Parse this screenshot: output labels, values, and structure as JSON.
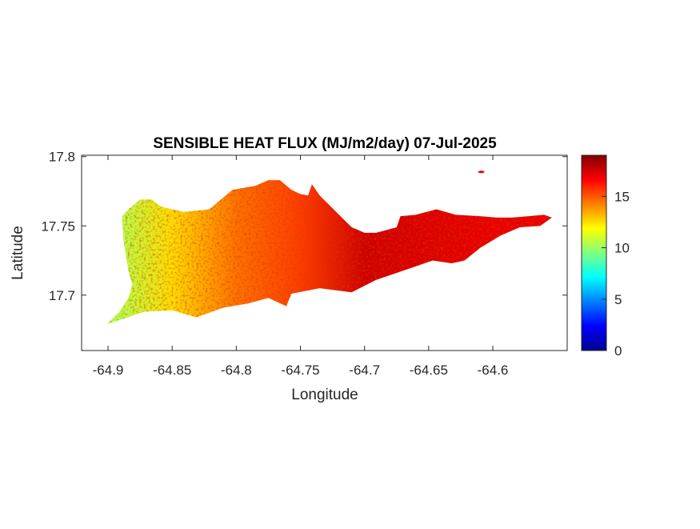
{
  "chart_data": {
    "type": "heatmap",
    "title": "SENSIBLE HEAT FLUX (MJ/m2/day) 07-Jul-2025",
    "xlabel": "Longitude",
    "ylabel": "Latitude",
    "xlim": [
      -64.9206,
      -64.542
    ],
    "ylim": [
      17.66,
      17.801
    ],
    "xticks": [
      -64.9,
      -64.85,
      -64.8,
      -64.75,
      -64.7,
      -64.65,
      -64.6
    ],
    "xtick_labels": [
      "-64.9",
      "-64.85",
      "-64.8",
      "-64.75",
      "-64.7",
      "-64.65",
      "-64.6"
    ],
    "yticks": [
      17.7,
      17.75,
      17.8
    ],
    "ytick_labels": [
      "17.7",
      "17.75",
      "17.8"
    ],
    "colorbar": {
      "colormap": "jet",
      "clim": [
        0,
        19
      ],
      "ticks": [
        0,
        5,
        10,
        15
      ],
      "tick_labels": [
        "0",
        "5",
        "10",
        "15"
      ]
    },
    "value_gradient_by_longitude": [
      {
        "lon": -64.89,
        "value": 10.5
      },
      {
        "lon": -64.85,
        "value": 12.5
      },
      {
        "lon": -64.8,
        "value": 14.5
      },
      {
        "lon": -64.75,
        "value": 15.5
      },
      {
        "lon": -64.7,
        "value": 17.5
      },
      {
        "lon": -64.6,
        "value": 17.0
      }
    ],
    "island_outline": [
      [
        -64.901,
        17.679
      ],
      [
        -64.891,
        17.688
      ],
      [
        -64.884,
        17.698
      ],
      [
        -64.881,
        17.708
      ],
      [
        -64.884,
        17.717
      ],
      [
        -64.888,
        17.74
      ],
      [
        -64.889,
        17.757
      ],
      [
        -64.884,
        17.762
      ],
      [
        -64.875,
        17.769
      ],
      [
        -64.866,
        17.769
      ],
      [
        -64.859,
        17.764
      ],
      [
        -64.841,
        17.76
      ],
      [
        -64.821,
        17.762
      ],
      [
        -64.803,
        17.776
      ],
      [
        -64.785,
        17.779
      ],
      [
        -64.775,
        17.783
      ],
      [
        -64.766,
        17.783
      ],
      [
        -64.757,
        17.776
      ],
      [
        -64.75,
        17.773
      ],
      [
        -64.744,
        17.772
      ],
      [
        -64.741,
        17.78
      ],
      [
        -64.735,
        17.772
      ],
      [
        -64.722,
        17.76
      ],
      [
        -64.71,
        17.749
      ],
      [
        -64.7,
        17.745
      ],
      [
        -64.691,
        17.745
      ],
      [
        -64.675,
        17.749
      ],
      [
        -64.672,
        17.757
      ],
      [
        -64.66,
        17.758
      ],
      [
        -64.644,
        17.762
      ],
      [
        -64.629,
        17.758
      ],
      [
        -64.61,
        17.757
      ],
      [
        -64.597,
        17.756
      ],
      [
        -64.585,
        17.756
      ],
      [
        -64.572,
        17.757
      ],
      [
        -64.56,
        17.758
      ],
      [
        -64.554,
        17.756
      ],
      [
        -64.563,
        17.75
      ],
      [
        -64.579,
        17.749
      ],
      [
        -64.594,
        17.743
      ],
      [
        -64.61,
        17.734
      ],
      [
        -64.622,
        17.725
      ],
      [
        -64.632,
        17.723
      ],
      [
        -64.647,
        17.725
      ],
      [
        -64.672,
        17.717
      ],
      [
        -64.691,
        17.711
      ],
      [
        -64.71,
        17.702
      ],
      [
        -64.735,
        17.705
      ],
      [
        -64.757,
        17.701
      ],
      [
        -64.761,
        17.692
      ],
      [
        -64.775,
        17.698
      ],
      [
        -64.791,
        17.694
      ],
      [
        -64.81,
        17.691
      ],
      [
        -64.831,
        17.684
      ],
      [
        -64.85,
        17.689
      ],
      [
        -64.872,
        17.688
      ],
      [
        -64.891,
        17.682
      ]
    ],
    "islet": {
      "lon": -64.609,
      "lat": 17.789,
      "value": 17
    }
  }
}
